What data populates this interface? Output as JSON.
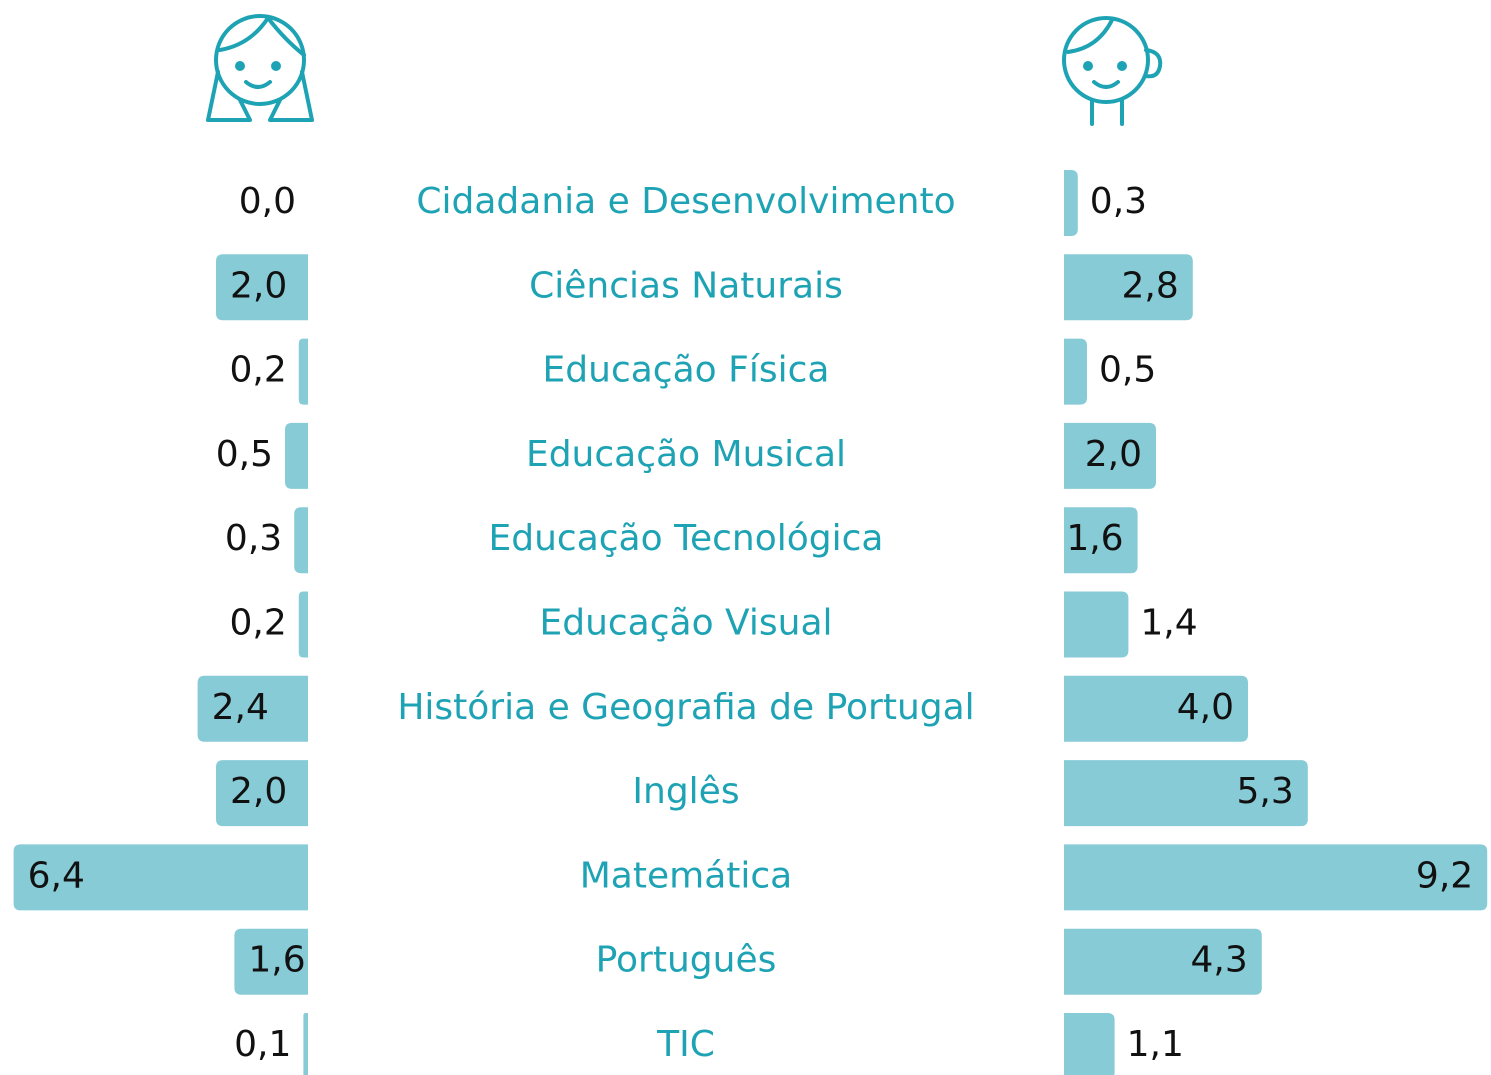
{
  "chart_data": {
    "type": "butterfly",
    "categories": [
      "Cidadania e Desenvolvimento",
      "Ciências Naturais",
      "Educação Física",
      "Educação Musical",
      "Educação Tecnológica",
      "Educação Visual",
      "História e Geografia de Portugal",
      "Inglês",
      "Matemática",
      "Português",
      "TIC"
    ],
    "series": [
      {
        "color": "#87cbd6",
        "values": [
          0.0,
          2.0,
          0.2,
          0.5,
          0.3,
          0.2,
          2.4,
          2.0,
          6.4,
          1.6,
          0.1
        ],
        "value_labels": [
          "0,0",
          "2,0",
          "0,2",
          "0,5",
          "0,3",
          "0,2",
          "2,4",
          "2,0",
          "6,4",
          "1,6",
          "0,1"
        ]
      },
      {
        "color": "#87cbd6",
        "values": [
          0.3,
          2.8,
          0.5,
          2.0,
          1.6,
          1.4,
          4.0,
          5.3,
          9.2,
          4.3,
          1.1
        ],
        "value_labels": [
          "0,3",
          "2,8",
          "0,5",
          "2,0",
          "1,6",
          "1,4",
          "4,0",
          "5,3",
          "9,2",
          "4,3",
          "1,1"
        ]
      }
    ]
  }
}
